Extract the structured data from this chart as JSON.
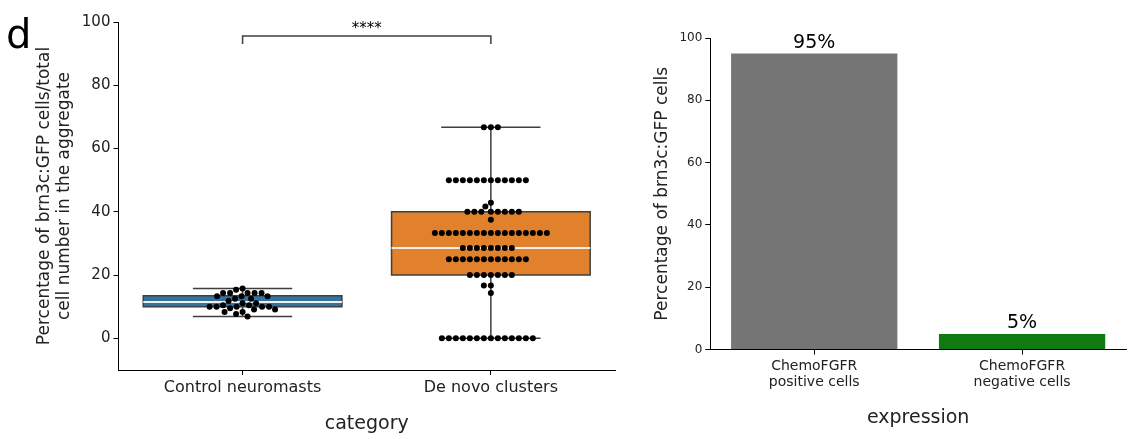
{
  "chart_data": [
    {
      "type": "box",
      "categories": [
        "Control neuromasts",
        "De novo clusters"
      ],
      "xlabel": "category",
      "ylabel": "Percentage of brn3c:GFP cells/total\ncell number in the aggregate",
      "colors": [
        "#3274a1",
        "#e1812c"
      ],
      "boxes": [
        {
          "low": 6.9,
          "q1": 10,
          "median": 11.5,
          "q3": 13.5,
          "high": 15.8
        },
        {
          "low": 0,
          "q1": 20,
          "median": 28.6,
          "q3": 40,
          "high": 66.7
        }
      ],
      "series": [
        {
          "type": "scatter",
          "color": "#000000",
          "marker": "circle",
          "x": [
            "Control neuromasts",
            "Control neuromasts",
            "Control neuromasts",
            "Control neuromasts",
            "Control neuromasts",
            "Control neuromasts",
            "Control neuromasts",
            "Control neuromasts",
            "Control neuromasts",
            "Control neuromasts",
            "Control neuromasts",
            "Control neuromasts",
            "Control neuromasts",
            "Control neuromasts",
            "Control neuromasts",
            "Control neuromasts",
            "Control neuromasts",
            "Control neuromasts",
            "Control neuromasts",
            "Control neuromasts",
            "Control neuromasts",
            "Control neuromasts",
            "Control neuromasts",
            "Control neuromasts",
            "Control neuromasts",
            "Control neuromasts",
            "Control neuromasts",
            "Control neuromasts",
            "Control neuromasts",
            "De novo clusters",
            "De novo clusters",
            "De novo clusters",
            "De novo clusters",
            "De novo clusters",
            "De novo clusters",
            "De novo clusters",
            "De novo clusters",
            "De novo clusters",
            "De novo clusters",
            "De novo clusters",
            "De novo clusters",
            "De novo clusters",
            "De novo clusters",
            "De novo clusters",
            "De novo clusters",
            "De novo clusters",
            "De novo clusters",
            "De novo clusters",
            "De novo clusters",
            "De novo clusters",
            "De novo clusters",
            "De novo clusters",
            "De novo clusters",
            "De novo clusters",
            "De novo clusters",
            "De novo clusters",
            "De novo clusters",
            "De novo clusters",
            "De novo clusters",
            "De novo clusters",
            "De novo clusters",
            "De novo clusters",
            "De novo clusters",
            "De novo clusters",
            "De novo clusters",
            "De novo clusters",
            "De novo clusters",
            "De novo clusters",
            "De novo clusters",
            "De novo clusters",
            "De novo clusters",
            "De novo clusters",
            "De novo clusters",
            "De novo clusters",
            "De novo clusters",
            "De novo clusters",
            "De novo clusters",
            "De novo clusters",
            "De novo clusters",
            "De novo clusters",
            "De novo clusters",
            "De novo clusters",
            "De novo clusters",
            "De novo clusters",
            "De novo clusters",
            "De novo clusters",
            "De novo clusters",
            "De novo clusters",
            "De novo clusters",
            "De novo clusters",
            "De novo clusters",
            "De novo clusters",
            "De novo clusters",
            "De novo clusters",
            "De novo clusters",
            "De novo clusters",
            "De novo clusters",
            "De novo clusters",
            "De novo clusters",
            "De novo clusters",
            "De novo clusters",
            "De novo clusters",
            "De novo clusters",
            "De novo clusters",
            "De novo clusters",
            "De novo clusters",
            "De novo clusters",
            "De novo clusters",
            "De novo clusters",
            "De novo clusters",
            "De novo clusters",
            "De novo clusters",
            "De novo clusters",
            "De novo clusters",
            "De novo clusters",
            "De novo clusters"
          ],
          "values": [
            15.8,
            15.4,
            14.3,
            14.3,
            14.3,
            14.3,
            14.3,
            13.3,
            13.3,
            13.3,
            12.5,
            12.5,
            11.8,
            11.1,
            11.1,
            10.5,
            10.5,
            10,
            10,
            10,
            10,
            10,
            9.5,
            9.1,
            9.1,
            8.3,
            8.3,
            7.7,
            6.9,
            66.7,
            66.7,
            66.7,
            50,
            50,
            50,
            50,
            50,
            50,
            50,
            50,
            50,
            50,
            50,
            50,
            42.9,
            41.7,
            40,
            40,
            40,
            40,
            40,
            40,
            40,
            40,
            37.5,
            33.3,
            33.3,
            33.3,
            33.3,
            33.3,
            33.3,
            33.3,
            33.3,
            33.3,
            33.3,
            33.3,
            33.3,
            33.3,
            33.3,
            33.3,
            33.3,
            33.3,
            28.6,
            28.6,
            28.6,
            28.6,
            28.6,
            28.6,
            28.6,
            28.6,
            25,
            25,
            25,
            25,
            25,
            25,
            25,
            25,
            25,
            25,
            25,
            25,
            20,
            20,
            20,
            20,
            20,
            20,
            20,
            16.7,
            16.7,
            14.3,
            0,
            0,
            0,
            0,
            0,
            0,
            0,
            0,
            0,
            0,
            0,
            0,
            0,
            0
          ]
        }
      ],
      "ylim": [
        -10,
        100
      ],
      "yticks": [
        0,
        20,
        40,
        60,
        80,
        100
      ],
      "annotations": [
        "d",
        "****"
      ]
    },
    {
      "type": "bar",
      "categories": [
        "ChemoFGFR\npositive cells",
        "ChemoFGFR\nnegative cells"
      ],
      "values": [
        95,
        5
      ],
      "colors": [
        "#757575",
        "#107a10"
      ],
      "value_labels": [
        "95%",
        "5%"
      ],
      "xlabel": "expression",
      "ylabel": "Percentage of brn3c:GFP cells",
      "ylim": [
        0,
        100
      ],
      "yticks": [
        0,
        20,
        40,
        60,
        80,
        100
      ]
    }
  ]
}
